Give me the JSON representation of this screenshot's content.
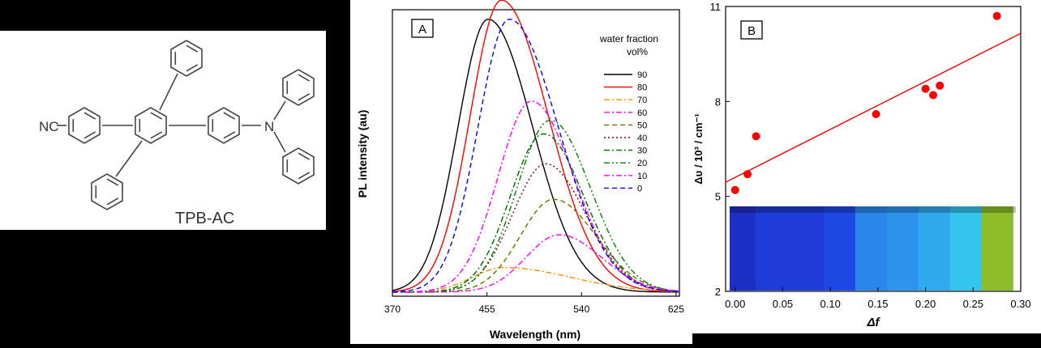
{
  "molecule": {
    "name": "TPB-AC",
    "substituent_label": "NC",
    "atom_label": "N"
  },
  "chart_data": [
    {
      "type": "line",
      "panel_label": "A",
      "xlabel": "Wavelength (nm)",
      "ylabel": "PL intensity (au)",
      "xlim": [
        370,
        628
      ],
      "ylim": [
        0,
        1.05
      ],
      "xticks": [
        "370",
        "455",
        "540",
        "625"
      ],
      "xtick_values": [
        370,
        455,
        540,
        625
      ],
      "legend_title": [
        "water fraction",
        "vol%"
      ],
      "series": [
        {
          "name": "90",
          "peak": 456,
          "amp": 1.0,
          "sl": 27,
          "sr": 40,
          "color": "#000000",
          "dash": "solid"
        },
        {
          "name": "80",
          "peak": 468,
          "amp": 1.07,
          "sl": 28,
          "sr": 42,
          "color": "#ff0000",
          "dash": "solid"
        },
        {
          "name": "70",
          "peak": 470,
          "amp": 0.09,
          "sl": 28,
          "sr": 60,
          "color": "#ff8c00",
          "dash": "dashdot"
        },
        {
          "name": "60",
          "peak": 495,
          "amp": 0.7,
          "sl": 30,
          "sr": 38,
          "color": "#ff00ff",
          "dash": "dashdot"
        },
        {
          "name": "50",
          "peak": 515,
          "amp": 0.34,
          "sl": 30,
          "sr": 38,
          "color": "#6b6b00",
          "dash": "dash"
        },
        {
          "name": "40",
          "peak": 508,
          "amp": 0.47,
          "sl": 30,
          "sr": 36,
          "color": "#800000",
          "dash": "dot"
        },
        {
          "name": "30",
          "peak": 506,
          "amp": 0.58,
          "sl": 30,
          "sr": 36,
          "color": "#006400",
          "dash": "dashdot"
        },
        {
          "name": "20",
          "peak": 512,
          "amp": 0.63,
          "sl": 30,
          "sr": 36,
          "color": "#008000",
          "dash": "dashdotdot"
        },
        {
          "name": "10",
          "peak": 520,
          "amp": 0.21,
          "sl": 30,
          "sr": 38,
          "color": "#ff00ff",
          "dash": "dashdot"
        },
        {
          "name": "0",
          "peak": 475,
          "amp": 1.0,
          "sl": 28,
          "sr": 44,
          "color": "#0000ff",
          "dash": "dash"
        }
      ]
    },
    {
      "type": "scatter",
      "panel_label": "B",
      "xlabel": "Δf",
      "ylabel": "Δυ / 10³ / cm⁻¹",
      "xlim": [
        -0.01,
        0.3
      ],
      "ylim": [
        2,
        11
      ],
      "xticks": [
        "0.00",
        "0.05",
        "0.10",
        "0.15",
        "0.20",
        "0.25",
        "0.30"
      ],
      "xtick_values": [
        0.0,
        0.05,
        0.1,
        0.15,
        0.2,
        0.25,
        0.3
      ],
      "yticks": [
        "2",
        "5",
        "8",
        "11"
      ],
      "ytick_values": [
        2,
        5,
        8,
        11
      ],
      "points": [
        {
          "x": 0.0,
          "y": 5.2
        },
        {
          "x": 0.013,
          "y": 5.7
        },
        {
          "x": 0.022,
          "y": 6.9
        },
        {
          "x": 0.148,
          "y": 7.6
        },
        {
          "x": 0.2,
          "y": 8.4
        },
        {
          "x": 0.208,
          "y": 8.2
        },
        {
          "x": 0.215,
          "y": 8.5
        },
        {
          "x": 0.275,
          "y": 10.7
        }
      ],
      "point_color": "#ff0000",
      "fit_line": {
        "x": [
          -0.01,
          0.3
        ],
        "y": [
          5.45,
          10.15
        ],
        "color": "#ff0000"
      },
      "photo_colors": [
        "#1c2fc4",
        "#1e3cd6",
        "#1c49e6",
        "#2a86ea",
        "#2d93ec",
        "#30a9ee",
        "#35c3ef",
        "#8bbc2a"
      ]
    }
  ]
}
